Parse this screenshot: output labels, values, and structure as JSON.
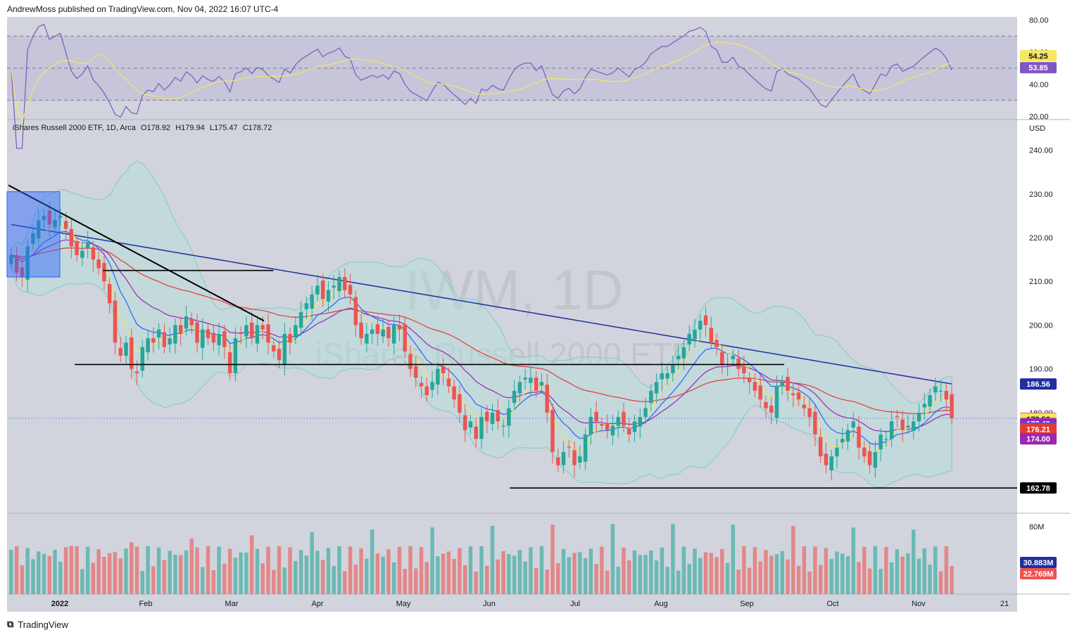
{
  "header": {
    "published": "AndrewMoss published on TradingView.com, Nov 04, 2022 16:07 UTC-4"
  },
  "footer": {
    "brand": "TradingView",
    "logo_icon": "tradingview-logo-icon"
  },
  "legend": {
    "symbol": "iShares Russell 2000 ETF, 1D, Arca",
    "o_label": "O",
    "o": "178.92",
    "h_label": "H",
    "h": "179.94",
    "l_label": "L",
    "l": "175.47",
    "c_label": "C",
    "c": "178.72"
  },
  "watermark": {
    "ticker": "IWM, 1D",
    "name": "iShares Russell 2000 ETF"
  },
  "colors": {
    "background": "#d1d4dc",
    "up": "#26a69a",
    "down": "#ef5350",
    "rsi": "#7e57c2",
    "rsi_ma": "#f5e663",
    "ma200": "#1e2fa0",
    "ma50": "#e53935",
    "ema20": "#9c27b0",
    "ema10": "#2962ff",
    "ema5": "#f5e663",
    "bollinger": "#b2dfdb"
  },
  "chart_data": {
    "type": "candlestick",
    "x_axis_labels": [
      "2022",
      "Feb",
      "Mar",
      "Apr",
      "May",
      "Jun",
      "Jul",
      "Aug",
      "Sep",
      "Oct",
      "Nov",
      "21"
    ],
    "price_axis": {
      "unit": "USD",
      "ticks": [
        "240.00",
        "230.00",
        "220.00",
        "210.00",
        "200.00",
        "190.00",
        "180.00"
      ],
      "range": [
        157,
        247
      ]
    },
    "rsi_axis": {
      "ticks": [
        "80.00",
        "60.00",
        "40.00",
        "20.00"
      ],
      "range": [
        18,
        82
      ],
      "levels": [
        70,
        50,
        30
      ]
    },
    "volume_axis": {
      "ticks": [
        "80M"
      ]
    },
    "price_labels": [
      {
        "value": "186.56",
        "price": 186.56,
        "color": "#1e2fa0"
      },
      {
        "value": "178.72",
        "price": 178.72,
        "color": "#ef5350"
      },
      {
        "value": "178.56",
        "price": 178.56,
        "color": "#f5e663"
      },
      {
        "value": "177.49",
        "price": 177.49,
        "color": "#9c27b0"
      },
      {
        "value": "176.46",
        "price": 176.46,
        "color": "#2962ff"
      },
      {
        "value": "176.21",
        "price": 176.21,
        "color": "#e53935"
      },
      {
        "value": "174.00",
        "price": 174.0,
        "color": "#9c27b0"
      },
      {
        "value": "162.78",
        "price": 162.78,
        "color": "#000000"
      }
    ],
    "rsi_labels": [
      {
        "value": "54.25",
        "rsi": 54.25,
        "color": "#f5e663"
      },
      {
        "value": "53.85",
        "rsi": 53.85,
        "color": "#7e57c2"
      }
    ],
    "volume_labels": [
      {
        "value": "30.883M",
        "color": "#1e2fa0"
      },
      {
        "value": "22.769M",
        "color": "#ef5350"
      }
    ],
    "closes": [
      216,
      212,
      211,
      218,
      221,
      224,
      225,
      223,
      224,
      225,
      222,
      218,
      216,
      217,
      219,
      215,
      213,
      210,
      205,
      196,
      193,
      196,
      190,
      189,
      195,
      197,
      196,
      199,
      195,
      197,
      200,
      198,
      202,
      200,
      196,
      199,
      197,
      196,
      198,
      195,
      189,
      197,
      198,
      200,
      197,
      200,
      199,
      196,
      194,
      192,
      198,
      196,
      200,
      203,
      205,
      207,
      209,
      206,
      208,
      209,
      211,
      208,
      207,
      200,
      197,
      198,
      199,
      198,
      199,
      197,
      200,
      199,
      194,
      190,
      188,
      186,
      184,
      187,
      190,
      189,
      186,
      183,
      180,
      176,
      178,
      174,
      179,
      178,
      180,
      178,
      177,
      181,
      185,
      187,
      188,
      188,
      185,
      187,
      180,
      171,
      168,
      171,
      172,
      168,
      170,
      175,
      179,
      178,
      177,
      176,
      177,
      179,
      177,
      175,
      178,
      179,
      181,
      185,
      187,
      189,
      189,
      191,
      193,
      195,
      198,
      199,
      201,
      200,
      196,
      195,
      191,
      191,
      193,
      190,
      189,
      187,
      185,
      183,
      181,
      180,
      186,
      187,
      185,
      184,
      183,
      181,
      179,
      175,
      170,
      168,
      170,
      172,
      174,
      176,
      178,
      172,
      170,
      168,
      171,
      175,
      174,
      178,
      179,
      176,
      177,
      178,
      180,
      182,
      184,
      186,
      185,
      183,
      178.72
    ],
    "levels": [
      {
        "price": 212.5,
        "from": 0.1,
        "to": 0.28
      },
      {
        "price": 191,
        "from": 0.07,
        "to": 0.82
      },
      {
        "price": 162.78,
        "from": 0.53,
        "to": 1
      }
    ],
    "trendline": {
      "from": [
        0,
        232
      ],
      "to": [
        0.27,
        201
      ]
    }
  }
}
